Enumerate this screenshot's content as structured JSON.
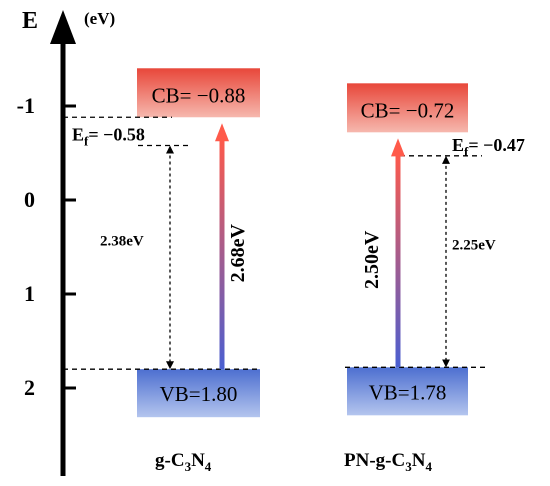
{
  "axis": {
    "label": "E",
    "unit": "(eV)",
    "ticks": [
      "-1",
      "0",
      "1",
      "2"
    ],
    "tick_values": [
      -1,
      0,
      1,
      2
    ],
    "range": [
      -1.65,
      2.85
    ]
  },
  "materials": [
    {
      "name_prefix": "g-C",
      "name_sub1": "3",
      "name_mid": "N",
      "name_sub2": "4",
      "cb_text": "CB= −0.88",
      "vb_text": "VB=1.80",
      "cb": -0.88,
      "vb": 1.8,
      "ef": -0.58,
      "ef_label": "E",
      "ef_sub": "f",
      "ef_value": "= −0.58",
      "gap_label": "2.68eV",
      "gap_value": 2.68,
      "ef_gap_label": "2.38eV",
      "ef_gap_value": 2.38
    },
    {
      "name_prefix": "PN-g-C",
      "name_sub1": "3",
      "name_mid": "N",
      "name_sub2": "4",
      "cb_text": "CB= −0.72",
      "vb_text": "VB=1.78",
      "cb": -0.72,
      "vb": 1.78,
      "ef": -0.47,
      "ef_label": "E",
      "ef_sub": "f",
      "ef_value": "= −0.47",
      "gap_label": "2.50eV",
      "gap_value": 2.5,
      "ef_gap_label": "2.25eV",
      "ef_gap_value": 2.25
    }
  ],
  "colors": {
    "axis": "#000000",
    "cb_top": "#e8473a",
    "cb_bottom": "#f6b8ae",
    "vb_top": "#4d6fd0",
    "vb_bottom": "#b4c5ee",
    "arrow_top": "#ff5a4a",
    "arrow_bottom": "#4a5fd1"
  }
}
